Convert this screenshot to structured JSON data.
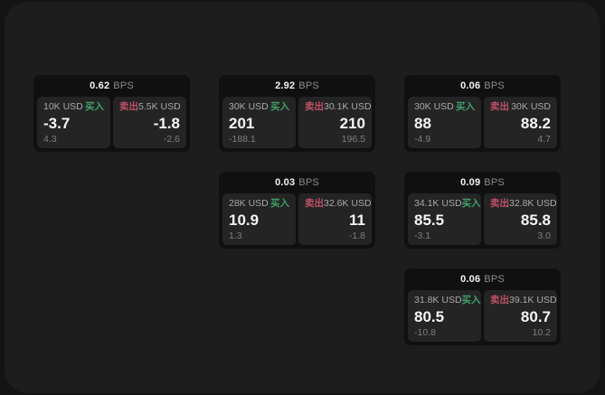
{
  "units": {
    "bps": "BPS"
  },
  "labels": {
    "buy": "买入",
    "sell": "卖出"
  },
  "colors": {
    "backdrop": "#141414",
    "window_bg": "#1d1d1e",
    "card_bg": "#101011",
    "panel_bg": "#242425",
    "buy_green": "#40a169",
    "sell_red": "#c05066",
    "value_white": "#f5f5f5",
    "muted_gray": "#a9a9a9",
    "sub_gray": "#7e7e7e"
  },
  "cards": [
    {
      "bps": "0.62",
      "buy": {
        "amount": "10K USD",
        "value": "-3.7",
        "sub": "4.3"
      },
      "sell": {
        "amount": "5.5K USD",
        "value": "-1.8",
        "sub": "-2.6"
      }
    },
    {
      "bps": "2.92",
      "buy": {
        "amount": "30K USD",
        "value": "201",
        "sub": "-188.1"
      },
      "sell": {
        "amount": "30.1K USD",
        "value": "210",
        "sub": "196.5"
      }
    },
    {
      "bps": "0.06",
      "buy": {
        "amount": "30K USD",
        "value": "88",
        "sub": "-4.9"
      },
      "sell": {
        "amount": "30K USD",
        "value": "88.2",
        "sub": "4.7"
      }
    },
    {
      "bps": "0.03",
      "buy": {
        "amount": "28K USD",
        "value": "10.9",
        "sub": "1.3"
      },
      "sell": {
        "amount": "32.6K USD",
        "value": "11",
        "sub": "-1.8"
      }
    },
    {
      "bps": "0.09",
      "buy": {
        "amount": "34.1K USD",
        "value": "85.5",
        "sub": "-3.1"
      },
      "sell": {
        "amount": "32.8K USD",
        "value": "85.8",
        "sub": "3.0"
      }
    },
    {
      "bps": "0.06",
      "buy": {
        "amount": "31.8K USD",
        "value": "80.5",
        "sub": "-10.8"
      },
      "sell": {
        "amount": "39.1K USD",
        "value": "80.7",
        "sub": "10.2"
      }
    }
  ]
}
